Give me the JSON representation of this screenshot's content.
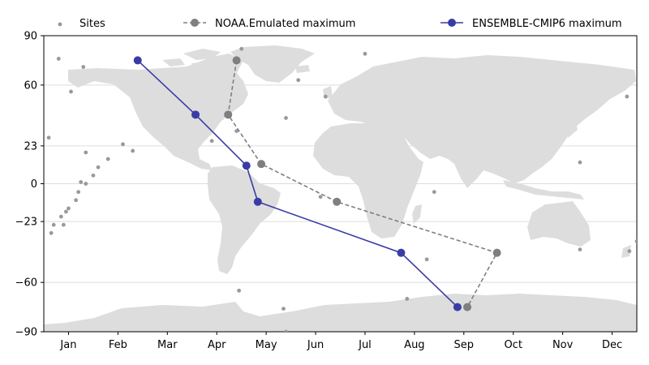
{
  "chart_data": {
    "type": "scatter",
    "title": "",
    "xlabel": "",
    "ylabel": "",
    "grid": "horizontal",
    "legend_position": "top",
    "x_ticks": [
      "Jan",
      "Feb",
      "Mar",
      "Apr",
      "May",
      "Jun",
      "Jul",
      "Aug",
      "Sep",
      "Oct",
      "Nov",
      "Dec"
    ],
    "y_ticks": [
      "90",
      "60",
      "23",
      "0",
      "−23",
      "−60",
      "−90"
    ],
    "y_tick_values": [
      90,
      60,
      23,
      0,
      -23,
      -60,
      -90
    ],
    "xlim": [
      0.5,
      12.5
    ],
    "ylim": [
      -90,
      90
    ],
    "colors": {
      "land": "#dddddd",
      "sites": "#999999",
      "noaa": "#7f7f7f",
      "ensemble": "#3a3ca6",
      "grid": "#dddddd"
    },
    "series": [
      {
        "name": "Sites",
        "style": "points",
        "points": [
          [
            0.8,
            76
          ],
          [
            1.3,
            71
          ],
          [
            1.05,
            56
          ],
          [
            0.6,
            28
          ],
          [
            1.35,
            19
          ],
          [
            1.8,
            15
          ],
          [
            1.6,
            10
          ],
          [
            1.5,
            5
          ],
          [
            1.35,
            0
          ],
          [
            1.25,
            1
          ],
          [
            1.2,
            -5
          ],
          [
            1.15,
            -10
          ],
          [
            1.0,
            -15
          ],
          [
            0.95,
            -17
          ],
          [
            0.85,
            -20
          ],
          [
            0.7,
            -25
          ],
          [
            0.9,
            -25
          ],
          [
            2.3,
            20
          ],
          [
            2.1,
            24
          ],
          [
            0.65,
            -30
          ],
          [
            4.5,
            82
          ],
          [
            4.4,
            32
          ],
          [
            3.9,
            26
          ],
          [
            5.4,
            40
          ],
          [
            5.65,
            63
          ],
          [
            6.2,
            53
          ],
          [
            7.0,
            79
          ],
          [
            6.1,
            -8
          ],
          [
            8.4,
            -5
          ],
          [
            8.25,
            -46
          ],
          [
            4.45,
            -65
          ],
          [
            5.35,
            -76
          ],
          [
            7.85,
            -70
          ],
          [
            5.4,
            -90
          ],
          [
            11.35,
            13
          ],
          [
            11.35,
            -40
          ],
          [
            12.3,
            53
          ],
          [
            12.35,
            -41
          ],
          [
            12.5,
            -35
          ]
        ]
      },
      {
        "name": "NOAA.Emulated maximum",
        "style": "dashed-line-markers",
        "points": [
          [
            4.4,
            75
          ],
          [
            4.23,
            42
          ],
          [
            4.9,
            12
          ],
          [
            6.43,
            -11
          ],
          [
            9.67,
            -42
          ],
          [
            9.07,
            -75
          ]
        ]
      },
      {
        "name": "ENSEMBLE-CMIP6 maximum",
        "style": "solid-line-markers",
        "points": [
          [
            2.4,
            75
          ],
          [
            3.57,
            42
          ],
          [
            4.6,
            11
          ],
          [
            4.83,
            -11
          ],
          [
            7.73,
            -42
          ],
          [
            8.87,
            -75
          ]
        ]
      }
    ]
  }
}
